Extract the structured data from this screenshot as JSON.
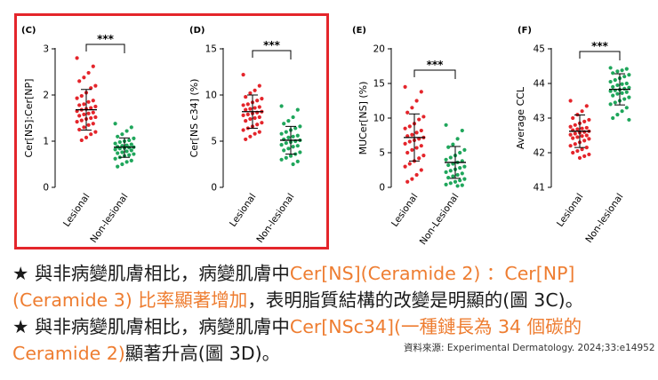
{
  "colors": {
    "lesional": "#e4252b",
    "nonlesional": "#1fa65b",
    "highlight": "#ee7d31",
    "box": "#e4252b"
  },
  "chart_data": [
    {
      "type": "scatter",
      "panel_label": "(C)",
      "ylabel": "Cer[NS]:Cer[NP]",
      "ylim": [
        0,
        3
      ],
      "yticks": [
        0,
        1,
        2,
        3
      ],
      "categories": [
        "Lesional",
        "Non-lesional"
      ],
      "significance": "***",
      "series": [
        {
          "name": "Lesional",
          "mean": 1.68,
          "sd_low": 1.24,
          "sd_high": 2.12,
          "values": [
            2.8,
            2.62,
            2.48,
            2.38,
            2.3,
            2.2,
            2.15,
            2.05,
            1.98,
            1.93,
            1.88,
            1.85,
            1.8,
            1.78,
            1.75,
            1.72,
            1.7,
            1.68,
            1.65,
            1.62,
            1.6,
            1.58,
            1.55,
            1.52,
            1.5,
            1.48,
            1.45,
            1.42,
            1.38,
            1.35,
            1.3,
            1.25,
            1.2,
            1.15,
            1.08,
            1.02
          ]
        },
        {
          "name": "Non-lesional",
          "mean": 0.87,
          "sd_low": 0.65,
          "sd_high": 1.07,
          "values": [
            1.38,
            1.3,
            1.22,
            1.15,
            1.1,
            1.06,
            1.02,
            1.0,
            0.98,
            0.95,
            0.93,
            0.91,
            0.9,
            0.88,
            0.87,
            0.86,
            0.85,
            0.84,
            0.82,
            0.8,
            0.78,
            0.76,
            0.74,
            0.72,
            0.7,
            0.68,
            0.65,
            0.62,
            0.58,
            0.55,
            0.5,
            0.45
          ]
        }
      ]
    },
    {
      "type": "scatter",
      "panel_label": "(D)",
      "ylabel": "Cer[NS c34] (%)",
      "ylim": [
        0,
        15
      ],
      "yticks": [
        0,
        5,
        10,
        15
      ],
      "categories": [
        "Lesional",
        "Non-lesional"
      ],
      "significance": "***",
      "series": [
        {
          "name": "Lesional",
          "mean": 8.2,
          "sd_low": 6.4,
          "sd_high": 10.0,
          "values": [
            12.2,
            11.0,
            10.5,
            10.2,
            9.8,
            9.6,
            9.4,
            9.2,
            9.0,
            8.9,
            8.7,
            8.6,
            8.5,
            8.4,
            8.2,
            8.1,
            8.0,
            7.9,
            7.8,
            7.6,
            7.5,
            7.4,
            7.2,
            7.0,
            6.8,
            6.6,
            6.4,
            6.2,
            6.0,
            5.8,
            5.5,
            5.2
          ]
        },
        {
          "name": "Non-lesional",
          "mean": 5.1,
          "sd_low": 3.6,
          "sd_high": 6.6,
          "values": [
            8.8,
            8.4,
            7.6,
            7.2,
            6.9,
            6.6,
            6.4,
            6.2,
            6.0,
            5.8,
            5.6,
            5.5,
            5.4,
            5.2,
            5.1,
            5.0,
            4.9,
            4.8,
            4.6,
            4.5,
            4.4,
            4.2,
            4.0,
            3.8,
            3.6,
            3.4,
            3.2,
            3.0,
            2.8,
            2.5
          ]
        }
      ]
    },
    {
      "type": "scatter",
      "panel_label": "(E)",
      "ylabel": "MUCer[NS] (%)",
      "ylim": [
        0,
        20
      ],
      "yticks": [
        0,
        5,
        10,
        15,
        20
      ],
      "categories": [
        "Lesional",
        "Non-Lesional"
      ],
      "significance": "***",
      "series": [
        {
          "name": "Lesional",
          "mean": 7.2,
          "sd_low": 3.8,
          "sd_high": 10.6,
          "values": [
            14.5,
            13.8,
            12.5,
            11.5,
            10.8,
            10.2,
            9.8,
            9.2,
            8.8,
            8.5,
            8.2,
            7.9,
            7.6,
            7.4,
            7.2,
            7.0,
            6.8,
            6.6,
            6.3,
            6.0,
            5.7,
            5.4,
            5.0,
            4.6,
            4.2,
            3.8,
            3.4,
            3.0,
            2.5,
            1.8,
            1.2,
            0.8
          ]
        },
        {
          "name": "Non-Lesional",
          "mean": 3.6,
          "sd_low": 1.3,
          "sd_high": 5.9,
          "values": [
            9.0,
            8.2,
            7.0,
            6.2,
            5.8,
            5.4,
            5.0,
            4.6,
            4.3,
            4.0,
            3.8,
            3.6,
            3.4,
            3.2,
            3.0,
            2.8,
            2.6,
            2.4,
            2.2,
            2.0,
            1.8,
            1.6,
            1.4,
            1.2,
            1.0,
            0.8,
            0.6,
            0.4,
            0.3,
            0.2
          ]
        }
      ]
    },
    {
      "type": "scatter",
      "panel_label": "(F)",
      "ylabel": "Average CCL",
      "ylim": [
        41,
        45
      ],
      "yticks": [
        41,
        42,
        43,
        44,
        45
      ],
      "categories": [
        "Lesional",
        "Non-lesional"
      ],
      "significance": "***",
      "series": [
        {
          "name": "Lesional",
          "mean": 42.62,
          "sd_low": 42.15,
          "sd_high": 43.09,
          "values": [
            43.5,
            43.35,
            43.2,
            43.1,
            43.0,
            42.95,
            42.9,
            42.85,
            42.8,
            42.75,
            42.72,
            42.7,
            42.68,
            42.65,
            42.62,
            42.6,
            42.58,
            42.55,
            42.52,
            42.5,
            42.48,
            42.45,
            42.42,
            42.4,
            42.35,
            42.3,
            42.25,
            42.2,
            42.15,
            42.1,
            42.05,
            42.0,
            41.95,
            41.9,
            41.85
          ]
        },
        {
          "name": "Non-lesional",
          "mean": 43.83,
          "sd_low": 43.38,
          "sd_high": 44.28,
          "values": [
            44.45,
            44.42,
            44.38,
            44.35,
            44.3,
            44.25,
            44.2,
            44.15,
            44.1,
            44.05,
            44.0,
            43.98,
            43.95,
            43.9,
            43.88,
            43.85,
            43.82,
            43.8,
            43.78,
            43.75,
            43.72,
            43.7,
            43.65,
            43.6,
            43.55,
            43.5,
            43.45,
            43.4,
            43.3,
            43.2,
            43.1,
            43.0,
            42.95
          ]
        }
      ]
    }
  ],
  "text": {
    "line1_a": "★ 與非病變肌膚相比，病變肌膚中",
    "line1_b": "Cer[NS](Ceramide 2) ：Cer[NP]",
    "line2_a": "(Ceramide 3) 比率顯著增加",
    "line2_b": "，表明脂質結構的改變是明顯的(圖 3C)。",
    "line3_a": "★ 與非病變肌膚相比，病變肌膚中",
    "line3_b": "Cer[NSc34](一種鏈長為 34 個碳的",
    "line4_a": "Ceramide 2)",
    "line4_b": "顯著升高(圖 3D)。",
    "source": "資料來源: Experimental Dermatology. 2024;33:e14952"
  }
}
